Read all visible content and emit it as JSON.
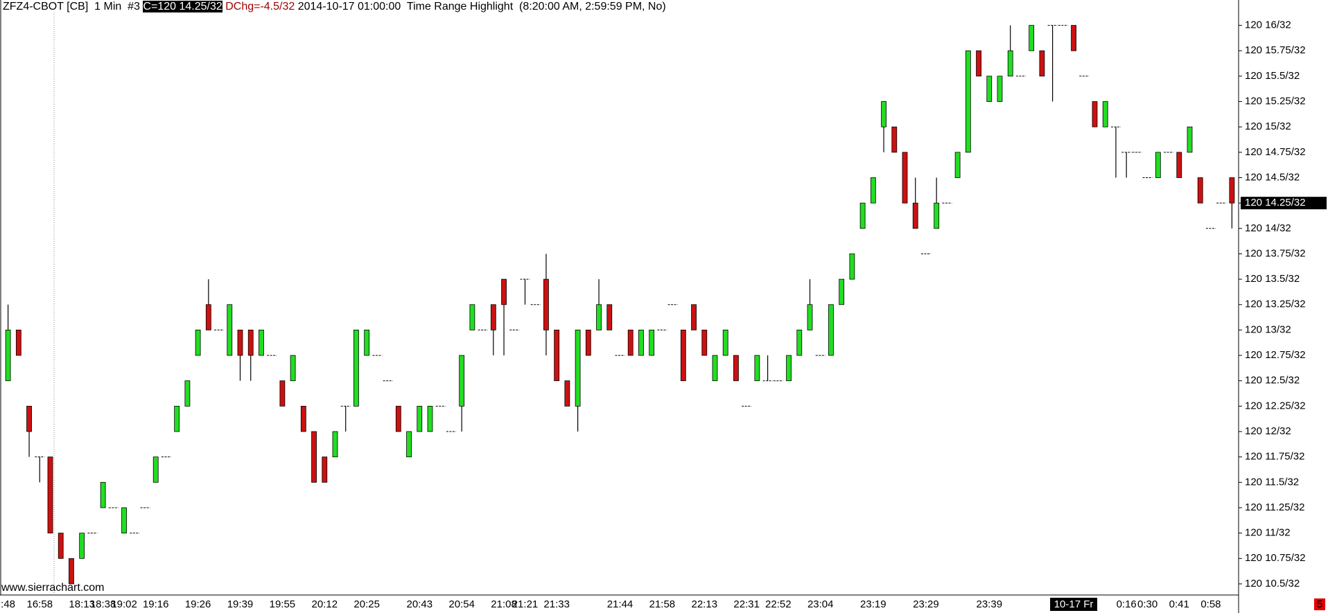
{
  "header": {
    "symbol": "ZFZ4-CBOT [CB]  1 Min  #3",
    "close": "C=120 14.25/32",
    "change": "DChg=-4.5/32",
    "info": "2014-10-17 01:00:00  Time Range Highlight  (8:20:00 AM, 2:59:59 PM, No)"
  },
  "footer": {
    "watermark": "www.sierrachart.com",
    "badge": "5"
  },
  "chart_data": {
    "type": "candlestick",
    "up_color": "#22dd22",
    "down_color": "#cc1111",
    "categories": [
      ":48",
      null,
      null,
      "16:58",
      null,
      null,
      null,
      "18:13",
      null,
      "18:38",
      null,
      "19:02",
      null,
      null,
      "19:16",
      null,
      null,
      null,
      "19:26",
      null,
      null,
      null,
      "19:39",
      null,
      null,
      null,
      "19:55",
      null,
      null,
      null,
      "20:12",
      null,
      null,
      null,
      "20:25",
      null,
      null,
      null,
      null,
      "20:43",
      null,
      null,
      null,
      "20:54",
      null,
      null,
      null,
      "21:08",
      null,
      "21:21",
      null,
      null,
      "21:33",
      null,
      null,
      null,
      null,
      null,
      "21:44",
      null,
      null,
      null,
      "21:58",
      null,
      null,
      null,
      "22:13",
      null,
      null,
      null,
      "22:31",
      null,
      null,
      "22:52",
      null,
      null,
      null,
      "23:04",
      null,
      null,
      null,
      null,
      "23:19",
      null,
      null,
      null,
      null,
      "23:29",
      null,
      null,
      null,
      null,
      null,
      "23:39",
      null,
      null,
      null,
      null,
      null,
      null,
      null,
      "10-17 Fr",
      null,
      null,
      null,
      null,
      "0:16",
      null,
      "0:30",
      null,
      null,
      "0:41",
      null,
      null,
      "0:58",
      null,
      null
    ],
    "open": [
      120.390625,
      120.40625,
      120.3828125,
      120.3671875,
      120.3671875,
      120.34375,
      120.3359375,
      120.3359375,
      120.34375,
      120.3515625,
      120.3515625,
      120.34375,
      120.34375,
      120.3515625,
      120.359375,
      120.3671875,
      120.375,
      120.3828125,
      120.3984375,
      120.4140625,
      120.40625,
      120.3984375,
      120.40625,
      120.40625,
      120.3984375,
      120.3984375,
      120.390625,
      120.390625,
      120.3828125,
      120.375,
      120.3671875,
      120.3671875,
      120.3828125,
      120.3828125,
      120.3984375,
      120.3984375,
      120.390625,
      120.3828125,
      120.3671875,
      120.375,
      120.375,
      120.3828125,
      120.375,
      120.3828125,
      120.40625,
      120.40625,
      120.4140625,
      120.421875,
      120.40625,
      120.421875,
      120.4140625,
      120.421875,
      120.40625,
      120.390625,
      120.3828125,
      120.40625,
      120.40625,
      120.4140625,
      120.3984375,
      120.40625,
      120.3984375,
      120.3984375,
      120.40625,
      120.4140625,
      120.40625,
      120.4140625,
      120.40625,
      120.390625,
      120.3984375,
      120.3984375,
      120.3828125,
      120.390625,
      120.390625,
      120.390625,
      120.390625,
      120.3984375,
      120.40625,
      120.3984375,
      120.3984375,
      120.4140625,
      120.421875,
      120.4375,
      120.4453125,
      120.46875,
      120.46875,
      120.4609375,
      120.4453125,
      120.4296875,
      120.4375,
      120.4453125,
      120.453125,
      120.4609375,
      120.4921875,
      120.4765625,
      120.4765625,
      120.484375,
      120.484375,
      120.4921875,
      120.4921875,
      120.5,
      120.5,
      120.5,
      120.484375,
      120.4765625,
      120.46875,
      120.46875,
      120.4609375,
      120.4609375,
      120.453125,
      120.453125,
      120.4609375,
      120.4609375,
      120.4609375,
      120.453125,
      120.4375,
      120.4453125,
      120.453125
    ],
    "high": [
      120.4140625,
      120.40625,
      120.3828125,
      120.3671875,
      120.3671875,
      120.34375,
      120.3359375,
      120.34375,
      120.34375,
      120.359375,
      120.3515625,
      120.3515625,
      120.34375,
      120.3515625,
      120.3671875,
      120.3671875,
      120.3828125,
      120.390625,
      120.40625,
      120.421875,
      120.40625,
      120.4140625,
      120.40625,
      120.40625,
      120.40625,
      120.3984375,
      120.390625,
      120.3984375,
      120.3828125,
      120.375,
      120.3671875,
      120.375,
      120.3828125,
      120.40625,
      120.40625,
      120.3984375,
      120.390625,
      120.3828125,
      120.375,
      120.3828125,
      120.3828125,
      120.3828125,
      120.375,
      120.3984375,
      120.4140625,
      120.40625,
      120.4140625,
      120.421875,
      120.40625,
      120.421875,
      120.4140625,
      120.4296875,
      120.40625,
      120.390625,
      120.40625,
      120.40625,
      120.421875,
      120.4140625,
      120.3984375,
      120.40625,
      120.40625,
      120.40625,
      120.40625,
      120.4140625,
      120.40625,
      120.4140625,
      120.40625,
      120.3984375,
      120.40625,
      120.3984375,
      120.3828125,
      120.3984375,
      120.3984375,
      120.390625,
      120.3984375,
      120.40625,
      120.421875,
      120.3984375,
      120.4140625,
      120.421875,
      120.4296875,
      120.4453125,
      120.453125,
      120.4765625,
      120.46875,
      120.4609375,
      120.453125,
      120.4296875,
      120.453125,
      120.4453125,
      120.4609375,
      120.4921875,
      120.4921875,
      120.484375,
      120.484375,
      120.5,
      120.484375,
      120.5,
      120.4921875,
      120.5,
      120.5,
      120.5,
      120.484375,
      120.4765625,
      120.4765625,
      120.46875,
      120.4609375,
      120.4609375,
      120.453125,
      120.4609375,
      120.4609375,
      120.4609375,
      120.46875,
      120.453125,
      120.4375,
      120.4453125,
      120.453125
    ],
    "low": [
      120.390625,
      120.3984375,
      120.3671875,
      120.359375,
      120.34375,
      120.3359375,
      120.328125,
      120.3359375,
      120.34375,
      120.3515625,
      120.3515625,
      120.34375,
      120.34375,
      120.3515625,
      120.359375,
      120.3671875,
      120.375,
      120.3828125,
      120.3984375,
      120.40625,
      120.40625,
      120.3984375,
      120.390625,
      120.390625,
      120.3984375,
      120.3984375,
      120.3828125,
      120.390625,
      120.375,
      120.359375,
      120.359375,
      120.3671875,
      120.375,
      120.3828125,
      120.3984375,
      120.3984375,
      120.390625,
      120.375,
      120.3671875,
      120.375,
      120.375,
      120.3828125,
      120.375,
      120.375,
      120.40625,
      120.40625,
      120.3984375,
      120.3984375,
      120.40625,
      120.4140625,
      120.4140625,
      120.3984375,
      120.390625,
      120.3828125,
      120.375,
      120.3984375,
      120.40625,
      120.40625,
      120.3984375,
      120.3984375,
      120.3984375,
      120.3984375,
      120.40625,
      120.4140625,
      120.390625,
      120.40625,
      120.3984375,
      120.390625,
      120.3984375,
      120.390625,
      120.3828125,
      120.390625,
      120.390625,
      120.390625,
      120.390625,
      120.3984375,
      120.40625,
      120.3984375,
      120.3984375,
      120.4140625,
      120.421875,
      120.4375,
      120.4453125,
      120.4609375,
      120.4609375,
      120.4453125,
      120.4375,
      120.4296875,
      120.4375,
      120.4453125,
      120.453125,
      120.4609375,
      120.484375,
      120.4765625,
      120.4765625,
      120.484375,
      120.484375,
      120.4921875,
      120.484375,
      120.4765625,
      120.5,
      120.4921875,
      120.484375,
      120.46875,
      120.46875,
      120.453125,
      120.453125,
      120.4609375,
      120.453125,
      120.453125,
      120.4609375,
      120.453125,
      120.4609375,
      120.4453125,
      120.4375,
      120.4453125,
      120.4375
    ],
    "close": [
      120.40625,
      120.3984375,
      120.375,
      120.3671875,
      120.34375,
      120.3359375,
      120.328125,
      120.34375,
      120.34375,
      120.359375,
      120.3515625,
      120.3515625,
      120.34375,
      120.3515625,
      120.3671875,
      120.3671875,
      120.3828125,
      120.390625,
      120.40625,
      120.40625,
      120.40625,
      120.4140625,
      120.3984375,
      120.3984375,
      120.40625,
      120.3984375,
      120.3828125,
      120.3984375,
      120.375,
      120.359375,
      120.359375,
      120.375,
      120.3828125,
      120.40625,
      120.40625,
      120.3984375,
      120.390625,
      120.375,
      120.375,
      120.3828125,
      120.3828125,
      120.3828125,
      120.375,
      120.3984375,
      120.4140625,
      120.40625,
      120.40625,
      120.4140625,
      120.40625,
      120.421875,
      120.4140625,
      120.40625,
      120.390625,
      120.3828125,
      120.40625,
      120.3984375,
      120.4140625,
      120.40625,
      120.3984375,
      120.3984375,
      120.40625,
      120.40625,
      120.40625,
      120.4140625,
      120.390625,
      120.40625,
      120.3984375,
      120.3984375,
      120.40625,
      120.390625,
      120.3828125,
      120.3984375,
      120.390625,
      120.390625,
      120.3984375,
      120.40625,
      120.4140625,
      120.3984375,
      120.4140625,
      120.421875,
      120.4296875,
      120.4453125,
      120.453125,
      120.4765625,
      120.4609375,
      120.4453125,
      120.4375,
      120.4296875,
      120.4453125,
      120.4453125,
      120.4609375,
      120.4921875,
      120.484375,
      120.484375,
      120.484375,
      120.4921875,
      120.484375,
      120.5,
      120.484375,
      120.5,
      120.5,
      120.4921875,
      120.484375,
      120.46875,
      120.4765625,
      120.46875,
      120.4609375,
      120.4609375,
      120.453125,
      120.4609375,
      120.4609375,
      120.453125,
      120.46875,
      120.4453125,
      120.4375,
      120.4453125,
      120.4453125
    ],
    "ylim": [
      120.3247,
      120.5078
    ],
    "yticks": [
      {
        "value": 120.5,
        "label": "120 16/32"
      },
      {
        "value": 120.4921875,
        "label": "120 15.75/32"
      },
      {
        "value": 120.484375,
        "label": "120 15.5/32"
      },
      {
        "value": 120.4765625,
        "label": "120 15.25/32"
      },
      {
        "value": 120.46875,
        "label": "120 15/32"
      },
      {
        "value": 120.4609375,
        "label": "120 14.75/32"
      },
      {
        "value": 120.453125,
        "label": "120 14.5/32"
      },
      {
        "value": 120.4453125,
        "label": "120 14.25/32"
      },
      {
        "value": 120.4375,
        "label": "120 14/32"
      },
      {
        "value": 120.4296875,
        "label": "120 13.75/32"
      },
      {
        "value": 120.421875,
        "label": "120 13.5/32"
      },
      {
        "value": 120.4140625,
        "label": "120 13.25/32"
      },
      {
        "value": 120.40625,
        "label": "120 13/32"
      },
      {
        "value": 120.3984375,
        "label": "120 12.75/32"
      },
      {
        "value": 120.390625,
        "label": "120 12.5/32"
      },
      {
        "value": 120.3828125,
        "label": "120 12.25/32"
      },
      {
        "value": 120.375,
        "label": "120 12/32"
      },
      {
        "value": 120.3671875,
        "label": "120 11.75/32"
      },
      {
        "value": 120.359375,
        "label": "120 11.5/32"
      },
      {
        "value": 120.3515625,
        "label": "120 11.25/32"
      },
      {
        "value": 120.34375,
        "label": "120 11/32"
      },
      {
        "value": 120.3359375,
        "label": "120 10.75/32"
      },
      {
        "value": 120.328125,
        "label": "120 10.5/32"
      }
    ],
    "last_price": {
      "value": 120.4453125,
      "label": "120 14.25/32"
    }
  }
}
